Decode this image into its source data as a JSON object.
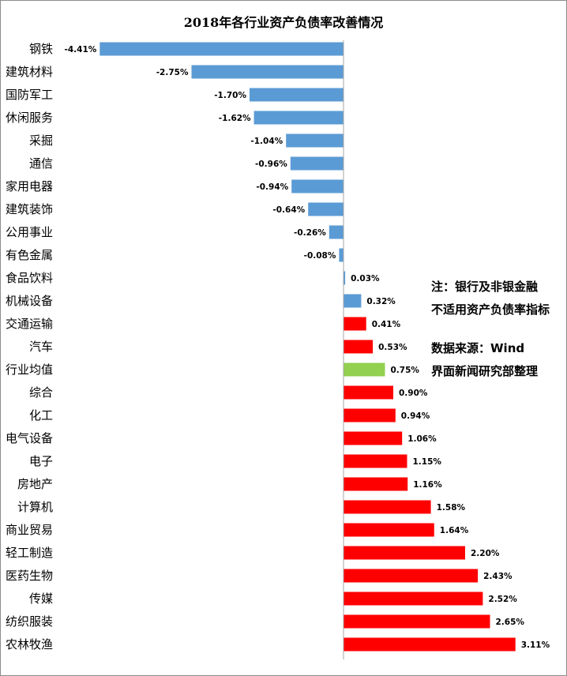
{
  "chart_data": {
    "type": "bar",
    "orientation": "horizontal",
    "title": "2018年各行业资产负债率改善情况",
    "xlabel": "",
    "ylabel": "",
    "unit": "%",
    "xlim": [
      -4.41,
      3.11
    ],
    "grid": false,
    "categories": [
      "钢铁",
      "建筑材料",
      "国防军工",
      "休闲服务",
      "采掘",
      "通信",
      "家用电器",
      "建筑装饰",
      "公用事业",
      "有色金属",
      "食品饮料",
      "机械设备",
      "交通运输",
      "汽车",
      "行业均值",
      "综合",
      "化工",
      "电气设备",
      "电子",
      "房地产",
      "计算机",
      "商业贸易",
      "轻工制造",
      "医药生物",
      "传媒",
      "纺织服装",
      "农林牧渔"
    ],
    "values": [
      -4.41,
      -2.75,
      -1.7,
      -1.62,
      -1.04,
      -0.96,
      -0.94,
      -0.64,
      -0.26,
      -0.08,
      0.03,
      0.32,
      0.41,
      0.53,
      0.75,
      0.9,
      0.94,
      1.06,
      1.15,
      1.16,
      1.58,
      1.64,
      2.2,
      2.43,
      2.52,
      2.65,
      3.11
    ],
    "value_labels": [
      "-4.41%",
      "-2.75%",
      "-1.70%",
      "-1.62%",
      "-1.04%",
      "-0.96%",
      "-0.94%",
      "-0.64%",
      "-0.26%",
      "-0.08%",
      "0.03%",
      "0.32%",
      "0.41%",
      "0.53%",
      "0.75%",
      "0.90%",
      "0.94%",
      "1.06%",
      "1.15%",
      "1.16%",
      "1.58%",
      "1.64%",
      "2.20%",
      "2.43%",
      "2.52%",
      "2.65%",
      "3.11%"
    ],
    "bar_colors": [
      "#5b9bd5",
      "#5b9bd5",
      "#5b9bd5",
      "#5b9bd5",
      "#5b9bd5",
      "#5b9bd5",
      "#5b9bd5",
      "#5b9bd5",
      "#5b9bd5",
      "#5b9bd5",
      "#5b9bd5",
      "#5b9bd5",
      "#ff0000",
      "#ff0000",
      "#92d050",
      "#ff0000",
      "#ff0000",
      "#ff0000",
      "#ff0000",
      "#ff0000",
      "#ff0000",
      "#ff0000",
      "#ff0000",
      "#ff0000",
      "#ff0000",
      "#ff0000",
      "#ff0000"
    ],
    "annotations": {
      "note_line1": "注：银行及非银金融",
      "note_line2": "不适用资产负债率指标",
      "source_line1": "数据来源：Wind",
      "source_line2": "界面新闻研究部整理"
    }
  },
  "colors": {
    "negative": "#5b9bd5",
    "positive": "#ff0000",
    "average": "#92d050",
    "axis": "#a6a6a6"
  }
}
